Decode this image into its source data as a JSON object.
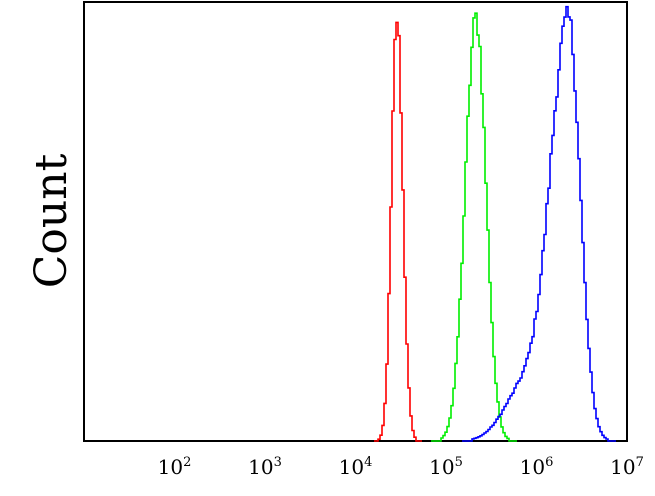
{
  "chart_data": {
    "type": "line",
    "ylabel": "Count",
    "xlabel": "",
    "x_scale": "log",
    "xlim": [
      10,
      10000000
    ],
    "ylim": [
      0,
      1
    ],
    "x_ticks": [
      {
        "base": "10",
        "exp": "2",
        "value": 100
      },
      {
        "base": "10",
        "exp": "3",
        "value": 1000
      },
      {
        "base": "10",
        "exp": "4",
        "value": 10000
      },
      {
        "base": "10",
        "exp": "5",
        "value": 100000
      },
      {
        "base": "10",
        "exp": "6",
        "value": 1000000
      },
      {
        "base": "10",
        "exp": "7",
        "value": 10000000
      }
    ],
    "grid": false,
    "legend": "none",
    "series": [
      {
        "color": "#ff0000",
        "peak_x": 28000,
        "peak_y": 0.99,
        "log_width_left": 0.06,
        "log_width_right": 0.065,
        "left_tail_x": 0,
        "left_tail_width": 0,
        "left_tail_amp": 0
      },
      {
        "color": "#00ee00",
        "peak_x": 210000,
        "peak_y": 0.99,
        "log_width_left": 0.12,
        "log_width_right": 0.11,
        "left_tail_x": 0,
        "left_tail_width": 0,
        "left_tail_amp": 0
      },
      {
        "color": "#0000ff",
        "peak_x": 2200000,
        "peak_y": 0.98,
        "log_width_left": 0.2,
        "log_width_right": 0.13,
        "left_tail_x": 700000,
        "left_tail_width": 0.22,
        "left_tail_amp": 0.12
      }
    ]
  }
}
